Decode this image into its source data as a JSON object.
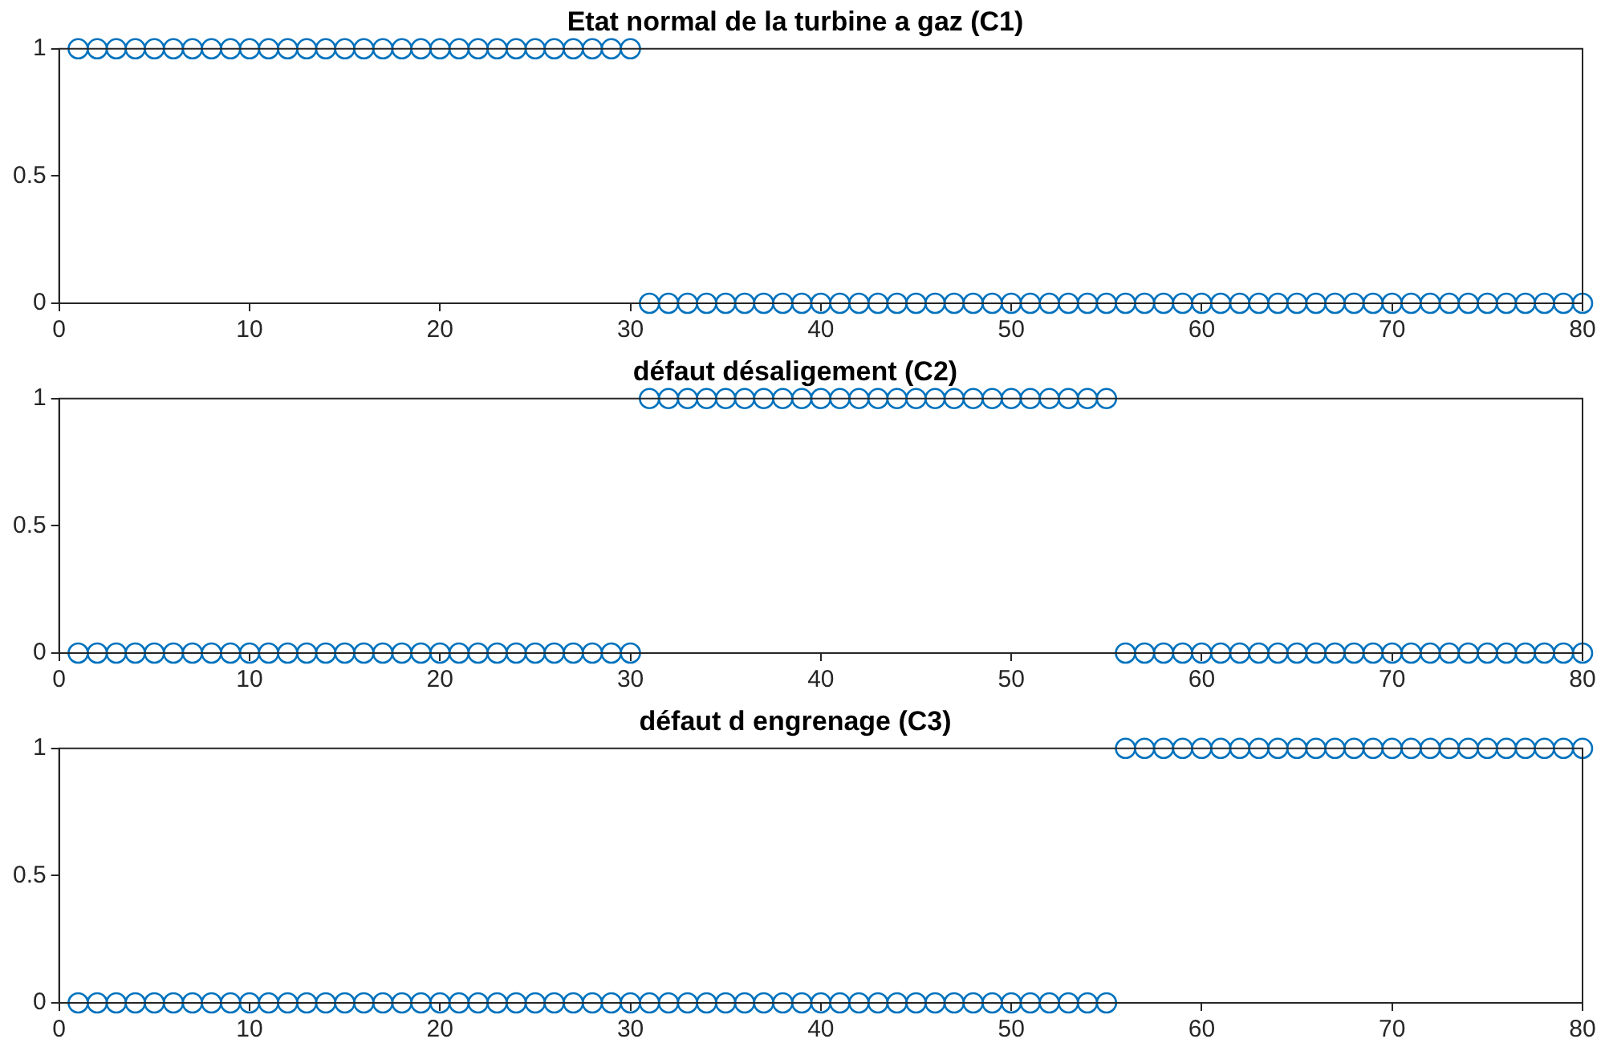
{
  "chart_data": [
    {
      "type": "scatter",
      "title": "Etat normal de la turbine a gaz (C1)",
      "marker": "circle",
      "xlim": [
        0,
        80
      ],
      "ylim": [
        0,
        1
      ],
      "xticks": [
        0,
        10,
        20,
        30,
        40,
        50,
        60,
        70,
        80
      ],
      "yticks": [
        0,
        0.5,
        1
      ],
      "x": [
        1,
        2,
        3,
        4,
        5,
        6,
        7,
        8,
        9,
        10,
        11,
        12,
        13,
        14,
        15,
        16,
        17,
        18,
        19,
        20,
        21,
        22,
        23,
        24,
        25,
        26,
        27,
        28,
        29,
        30,
        31,
        32,
        33,
        34,
        35,
        36,
        37,
        38,
        39,
        40,
        41,
        42,
        43,
        44,
        45,
        46,
        47,
        48,
        49,
        50,
        51,
        52,
        53,
        54,
        55,
        56,
        57,
        58,
        59,
        60,
        61,
        62,
        63,
        64,
        65,
        66,
        67,
        68,
        69,
        70,
        71,
        72,
        73,
        74,
        75,
        76,
        77,
        78,
        79,
        80
      ],
      "series": [
        {
          "color": "#0072bd",
          "values": [
            1,
            1,
            1,
            1,
            1,
            1,
            1,
            1,
            1,
            1,
            1,
            1,
            1,
            1,
            1,
            1,
            1,
            1,
            1,
            1,
            1,
            1,
            1,
            1,
            1,
            1,
            1,
            1,
            1,
            1,
            0,
            0,
            0,
            0,
            0,
            0,
            0,
            0,
            0,
            0,
            0,
            0,
            0,
            0,
            0,
            0,
            0,
            0,
            0,
            0,
            0,
            0,
            0,
            0,
            0,
            0,
            0,
            0,
            0,
            0,
            0,
            0,
            0,
            0,
            0,
            0,
            0,
            0,
            0,
            0,
            0,
            0,
            0,
            0,
            0,
            0,
            0,
            0,
            0,
            0
          ]
        }
      ]
    },
    {
      "type": "scatter",
      "title": "défaut désaligement (C2)",
      "marker": "circle",
      "xlim": [
        0,
        80
      ],
      "ylim": [
        0,
        1
      ],
      "xticks": [
        0,
        10,
        20,
        30,
        40,
        50,
        60,
        70,
        80
      ],
      "yticks": [
        0,
        0.5,
        1
      ],
      "x": [
        1,
        2,
        3,
        4,
        5,
        6,
        7,
        8,
        9,
        10,
        11,
        12,
        13,
        14,
        15,
        16,
        17,
        18,
        19,
        20,
        21,
        22,
        23,
        24,
        25,
        26,
        27,
        28,
        29,
        30,
        31,
        32,
        33,
        34,
        35,
        36,
        37,
        38,
        39,
        40,
        41,
        42,
        43,
        44,
        45,
        46,
        47,
        48,
        49,
        50,
        51,
        52,
        53,
        54,
        55,
        56,
        57,
        58,
        59,
        60,
        61,
        62,
        63,
        64,
        65,
        66,
        67,
        68,
        69,
        70,
        71,
        72,
        73,
        74,
        75,
        76,
        77,
        78,
        79,
        80
      ],
      "series": [
        {
          "color": "#0072bd",
          "values": [
            0,
            0,
            0,
            0,
            0,
            0,
            0,
            0,
            0,
            0,
            0,
            0,
            0,
            0,
            0,
            0,
            0,
            0,
            0,
            0,
            0,
            0,
            0,
            0,
            0,
            0,
            0,
            0,
            0,
            0,
            1,
            1,
            1,
            1,
            1,
            1,
            1,
            1,
            1,
            1,
            1,
            1,
            1,
            1,
            1,
            1,
            1,
            1,
            1,
            1,
            1,
            1,
            1,
            1,
            1,
            0,
            0,
            0,
            0,
            0,
            0,
            0,
            0,
            0,
            0,
            0,
            0,
            0,
            0,
            0,
            0,
            0,
            0,
            0,
            0,
            0,
            0,
            0,
            0,
            0
          ]
        }
      ]
    },
    {
      "type": "scatter",
      "title": "défaut d engrenage (C3)",
      "marker": "circle",
      "xlim": [
        0,
        80
      ],
      "ylim": [
        0,
        1
      ],
      "xticks": [
        0,
        10,
        20,
        30,
        40,
        50,
        60,
        70,
        80
      ],
      "yticks": [
        0,
        0.5,
        1
      ],
      "x": [
        1,
        2,
        3,
        4,
        5,
        6,
        7,
        8,
        9,
        10,
        11,
        12,
        13,
        14,
        15,
        16,
        17,
        18,
        19,
        20,
        21,
        22,
        23,
        24,
        25,
        26,
        27,
        28,
        29,
        30,
        31,
        32,
        33,
        34,
        35,
        36,
        37,
        38,
        39,
        40,
        41,
        42,
        43,
        44,
        45,
        46,
        47,
        48,
        49,
        50,
        51,
        52,
        53,
        54,
        55,
        56,
        57,
        58,
        59,
        60,
        61,
        62,
        63,
        64,
        65,
        66,
        67,
        68,
        69,
        70,
        71,
        72,
        73,
        74,
        75,
        76,
        77,
        78,
        79,
        80
      ],
      "series": [
        {
          "color": "#0072bd",
          "values": [
            0,
            0,
            0,
            0,
            0,
            0,
            0,
            0,
            0,
            0,
            0,
            0,
            0,
            0,
            0,
            0,
            0,
            0,
            0,
            0,
            0,
            0,
            0,
            0,
            0,
            0,
            0,
            0,
            0,
            0,
            0,
            0,
            0,
            0,
            0,
            0,
            0,
            0,
            0,
            0,
            0,
            0,
            0,
            0,
            0,
            0,
            0,
            0,
            0,
            0,
            0,
            0,
            0,
            0,
            0,
            1,
            1,
            1,
            1,
            1,
            1,
            1,
            1,
            1,
            1,
            1,
            1,
            1,
            1,
            1,
            1,
            1,
            1,
            1,
            1,
            1,
            1,
            1,
            1,
            1
          ]
        }
      ]
    }
  ]
}
